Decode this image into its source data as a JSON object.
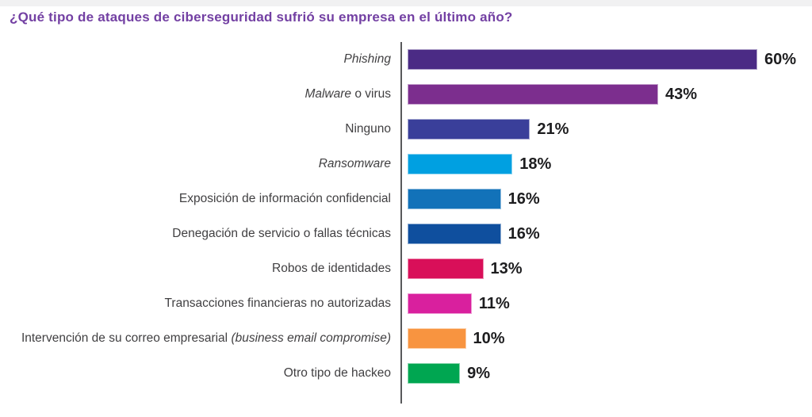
{
  "page": {
    "background": "#ffffff",
    "top_strip_color": "#f1f1f2"
  },
  "title": {
    "text": "¿Qué tipo de ataques de ciberseguridad sufrió su empresa en el último año?",
    "color": "#7340a3"
  },
  "chart_data": {
    "type": "bar",
    "orientation": "horizontal",
    "title": "¿Qué tipo de ataques de ciberseguridad sufrió su empresa en el último año?",
    "xlabel": "",
    "ylabel": "",
    "unit": "%",
    "xlim": [
      0,
      62
    ],
    "grid": false,
    "legend": false,
    "axis_line_color": "#58595b",
    "category_label_color": "#414042",
    "value_label_color": "#1d1d1f",
    "categories": [
      "Phishing",
      "Malware o virus",
      "Ninguno",
      "Ransomware",
      "Exposición de información confidencial",
      "Denegación de servicio o fallas técnicas",
      "Robos de identidades",
      "Transacciones financieras no autorizadas",
      "Intervención de su correo empresarial (business email compromise)",
      "Otro tipo de hackeo"
    ],
    "values": [
      60,
      43,
      21,
      18,
      16,
      16,
      13,
      11,
      10,
      9
    ],
    "rows": [
      {
        "label_segments": [
          {
            "text": "Phishing",
            "italic": true
          }
        ],
        "value": 60,
        "display_value": "60%",
        "color": "#4b2b85"
      },
      {
        "label_segments": [
          {
            "text": "Malware",
            "italic": true
          },
          {
            "text": " o virus",
            "italic": false
          }
        ],
        "value": 43,
        "display_value": "43%",
        "color": "#7c2e8e"
      },
      {
        "label_segments": [
          {
            "text": "Ninguno",
            "italic": false
          }
        ],
        "value": 21,
        "display_value": "21%",
        "color": "#3a3f9a"
      },
      {
        "label_segments": [
          {
            "text": "Ransomware",
            "italic": true
          }
        ],
        "value": 18,
        "display_value": "18%",
        "color": "#00a0e1"
      },
      {
        "label_segments": [
          {
            "text": "Exposición de información confidencial",
            "italic": false
          }
        ],
        "value": 16,
        "display_value": "16%",
        "color": "#1272b9"
      },
      {
        "label_segments": [
          {
            "text": "Denegación de servicio o fallas técnicas",
            "italic": false
          }
        ],
        "value": 16,
        "display_value": "16%",
        "color": "#0f4f9e"
      },
      {
        "label_segments": [
          {
            "text": "Robos de identidades",
            "italic": false
          }
        ],
        "value": 13,
        "display_value": "13%",
        "color": "#d90f59"
      },
      {
        "label_segments": [
          {
            "text": "Transacciones financieras no autorizadas",
            "italic": false
          }
        ],
        "value": 11,
        "display_value": "11%",
        "color": "#d9209e"
      },
      {
        "label_segments": [
          {
            "text": "Intervención de su correo empresarial ",
            "italic": false
          },
          {
            "text": "(business email compromise)",
            "italic": true
          }
        ],
        "value": 10,
        "display_value": "10%",
        "color": "#f89440"
      },
      {
        "label_segments": [
          {
            "text": "Otro tipo de hackeo",
            "italic": false
          }
        ],
        "value": 9,
        "display_value": "9%",
        "color": "#00a651"
      }
    ]
  }
}
